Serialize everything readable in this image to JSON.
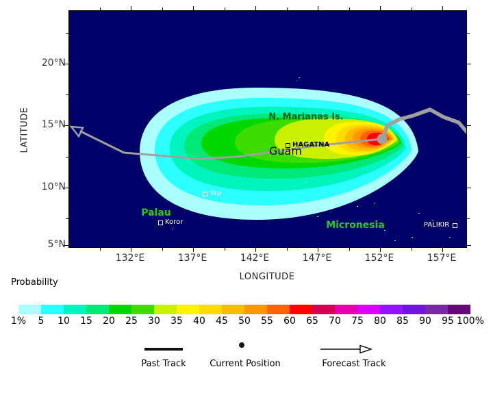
{
  "figure": {
    "ocean_color": "#000069",
    "track_color": "#A0A0A0",
    "probability_title": "Probability"
  },
  "axes": {
    "x_title": "LONGITUDE",
    "y_title": "LATITUDE",
    "x_tick_labels": [
      "132°E",
      "137°E",
      "142°E",
      "147°E",
      "152°E",
      "157°E"
    ],
    "y_tick_labels": [
      "20°N",
      "15°N",
      "10°N",
      "5°N"
    ]
  },
  "colorbar": {
    "labels": [
      "1%",
      "5",
      "10",
      "15",
      "20",
      "25",
      "30",
      "35",
      "40",
      "45",
      "50",
      "55",
      "60",
      "65",
      "70",
      "75",
      "80",
      "85",
      "90",
      "95",
      "100%"
    ],
    "colors": [
      "#AAFFFF",
      "#2BFFFF",
      "#00F5BE",
      "#00E878",
      "#00D800",
      "#3CDC00",
      "#C8F000",
      "#FFF400",
      "#FFDC00",
      "#FFB900",
      "#FF9600",
      "#FF6400",
      "#FF0000",
      "#D20050",
      "#E100B4",
      "#DC00FF",
      "#9114FF",
      "#6E14DC",
      "#7828AA",
      "#640A78"
    ]
  },
  "legend": {
    "past_track": "Past Track",
    "current_position": "Current Position",
    "forecast_track": "Forecast Track"
  },
  "places": [
    {
      "name": "N. Marianas Is.",
      "kind": "region",
      "color": "#146414"
    },
    {
      "name": "HAGATNA",
      "kind": "city",
      "color": "#000000"
    },
    {
      "name": "Guam",
      "kind": "island",
      "color": "#000000"
    },
    {
      "name": "Yap",
      "kind": "city",
      "color": "#FFFFFF"
    },
    {
      "name": "Palau",
      "kind": "region",
      "color": "#22CC22"
    },
    {
      "name": "Koror",
      "kind": "city",
      "color": "#FFFFFF"
    },
    {
      "name": "Micronesia",
      "kind": "region",
      "color": "#22CC22"
    },
    {
      "name": "PALIKIR",
      "kind": "city",
      "color": "#FFFFFF"
    }
  ],
  "chart_data": {
    "type": "heatmap",
    "title": "",
    "subtitle": "Tropical cyclone strike probability contour swath, Western North Pacific",
    "xlabel": "LONGITUDE",
    "ylabel": "LATITUDE",
    "x_range_deg_e": [
      127.1,
      158.9
    ],
    "y_range_deg_n": [
      5.0,
      24.3
    ],
    "x_tick_values_deg_e": [
      132,
      137,
      142,
      147,
      152,
      157
    ],
    "y_tick_values_deg_n": [
      20,
      15,
      10,
      5
    ],
    "grid": false,
    "legend_position": "bottom",
    "probability_levels_pct": [
      1,
      5,
      10,
      15,
      20,
      25,
      30,
      35,
      40,
      45,
      50,
      55,
      60,
      65,
      70,
      75,
      80,
      85,
      90,
      95,
      100
    ],
    "max_probability_band_pct": "60-65",
    "swath_extent_deg": {
      "west": 132.7,
      "east": 154.5,
      "north": 18.6,
      "south": 8.0
    },
    "current_position": {
      "lon_e": 152.2,
      "lat_n": 13.9
    },
    "past_track_lon_lat": [
      [
        158.9,
        14.4
      ],
      [
        158.3,
        15.2
      ],
      [
        157.1,
        15.7
      ],
      [
        156.0,
        16.3
      ],
      [
        154.6,
        15.8
      ],
      [
        153.6,
        15.5
      ],
      [
        152.6,
        15.0
      ],
      [
        152.2,
        13.9
      ]
    ],
    "forecast_track_lon_lat": [
      [
        152.2,
        13.9
      ],
      [
        146.8,
        13.4
      ],
      [
        140.5,
        12.3
      ],
      [
        137.5,
        12.1
      ],
      [
        131.5,
        12.7
      ],
      [
        127.7,
        14.6
      ]
    ],
    "place_markers_lon_lat": {
      "HAGATNA": [
        144.6,
        13.5
      ],
      "Yap": [
        137.9,
        9.6
      ],
      "Koror": [
        134.4,
        7.3
      ],
      "PALIKIR": [
        157.9,
        7.0
      ]
    }
  }
}
